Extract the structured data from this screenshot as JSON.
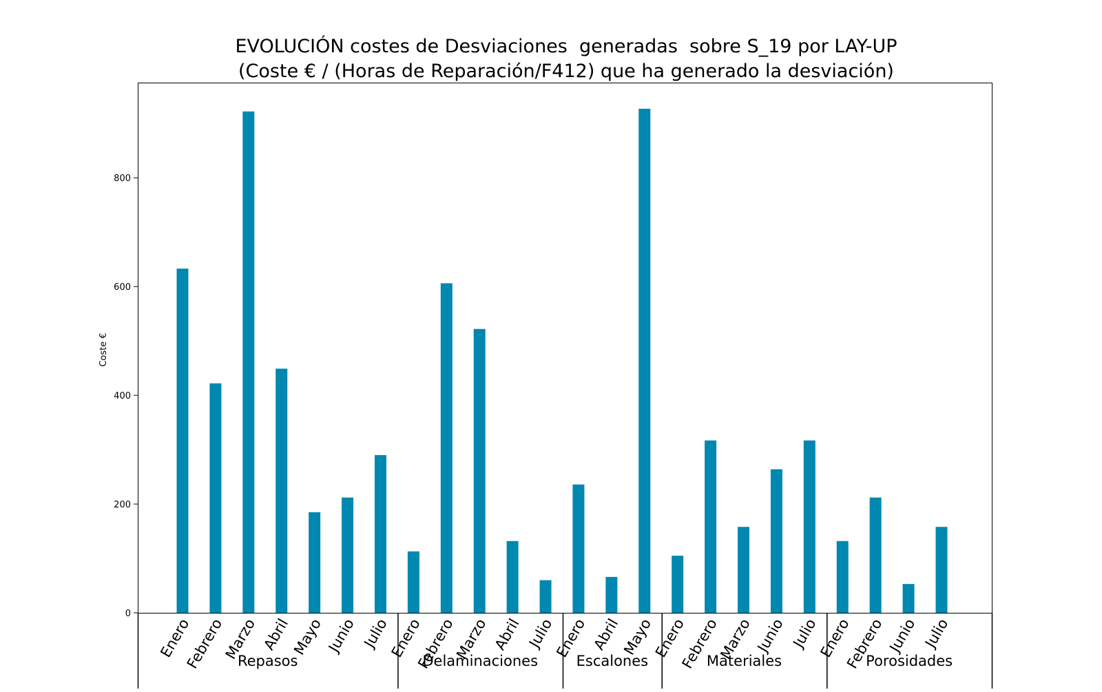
{
  "chart_data": {
    "type": "bar",
    "title": "EVOLUCIÓN costes de Desviaciones  generadas  sobre S_19 por LAY-UP",
    "subtitle": "(Coste € / (Horas de Reparación/F412) que ha generado la desviación)",
    "ylabel": "Coste €",
    "xlabel": "",
    "ylim": [
      0,
      975
    ],
    "yticks": [
      0,
      200,
      400,
      600,
      800
    ],
    "grid": false,
    "bar_color": "#0088b0",
    "groups": [
      {
        "name": "Repasos",
        "categories": [
          "Enero",
          "Febrero",
          "Marzo",
          "Abril",
          "Mayo",
          "Junio",
          "Julio"
        ],
        "values": [
          633,
          422,
          922,
          449,
          185,
          212,
          290
        ]
      },
      {
        "name": "Delaminaciones",
        "categories": [
          "Enero",
          "Febrero",
          "Marzo",
          "Abril",
          "Julio"
        ],
        "values": [
          113,
          606,
          522,
          132,
          60
        ]
      },
      {
        "name": "Escalones",
        "categories": [
          "Enero",
          "Abril",
          "Mayo"
        ],
        "values": [
          236,
          66,
          927
        ]
      },
      {
        "name": "Materiales",
        "categories": [
          "Enero",
          "Febrero",
          "Marzo",
          "Junio",
          "Julio"
        ],
        "values": [
          105,
          317,
          158,
          264,
          317
        ]
      },
      {
        "name": "Porosidades",
        "categories": [
          "Enero",
          "Febrero",
          "Junio",
          "Julio"
        ],
        "values": [
          132,
          212,
          53,
          158
        ]
      }
    ]
  }
}
